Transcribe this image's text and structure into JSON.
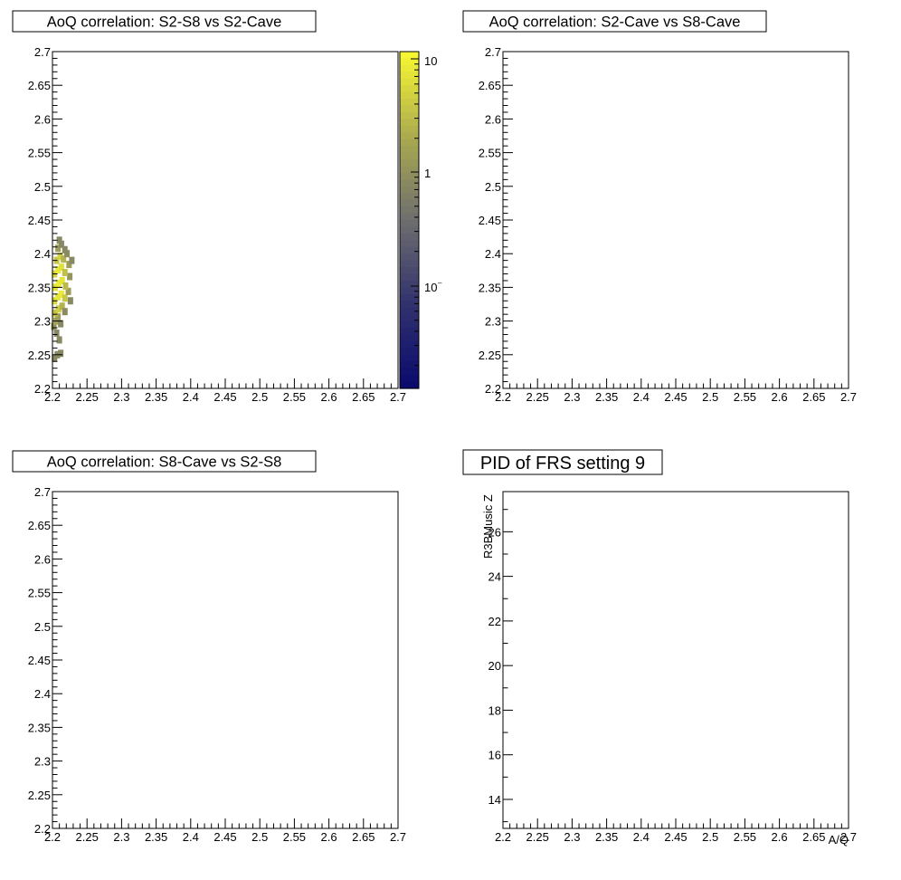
{
  "chart_data": [
    {
      "type": "heatmap",
      "title": "AoQ correlation: S2-S8 vs S2-Cave",
      "xlabel": "",
      "ylabel": "",
      "xlim": [
        2.2,
        2.7
      ],
      "ylim": [
        2.2,
        2.7
      ],
      "xticks": [
        "2.2",
        "2.25",
        "2.3",
        "2.35",
        "2.4",
        "2.45",
        "2.5",
        "2.55",
        "2.6",
        "2.65",
        "2.7"
      ],
      "yticks": [
        "2.2",
        "2.25",
        "2.3",
        "2.35",
        "2.4",
        "2.45",
        "2.5",
        "2.55",
        "2.6",
        "2.65",
        "2.7"
      ],
      "colorbar": {
        "scale": "log",
        "ticks": [
          "10",
          "1",
          "10"
        ],
        "range": [
          0.02,
          12
        ]
      },
      "colors": {
        "low": "#0b0b6e",
        "mid": "#6e6e6e",
        "high": "#f5f532"
      },
      "cells": [
        [
          2.203,
          2.245,
          0.4
        ],
        [
          2.207,
          2.25,
          0.6
        ],
        [
          2.212,
          2.252,
          0.5
        ],
        [
          2.202,
          2.292,
          1.2
        ],
        [
          2.205,
          2.3,
          1.8
        ],
        [
          2.208,
          2.306,
          1.5
        ],
        [
          2.212,
          2.296,
          0.9
        ],
        [
          2.204,
          2.312,
          3.5
        ],
        [
          2.209,
          2.318,
          5.0
        ],
        [
          2.214,
          2.322,
          2.5
        ],
        [
          2.218,
          2.314,
          1.0
        ],
        [
          2.203,
          2.33,
          6.0
        ],
        [
          2.208,
          2.336,
          8.5
        ],
        [
          2.213,
          2.34,
          9.5
        ],
        [
          2.218,
          2.334,
          4.0
        ],
        [
          2.223,
          2.344,
          1.5
        ],
        [
          2.204,
          2.35,
          7.0
        ],
        [
          2.209,
          2.356,
          10.0
        ],
        [
          2.214,
          2.36,
          8.0
        ],
        [
          2.219,
          2.352,
          3.0
        ],
        [
          2.225,
          2.366,
          1.2
        ],
        [
          2.203,
          2.37,
          5.5
        ],
        [
          2.208,
          2.376,
          9.0
        ],
        [
          2.213,
          2.38,
          7.5
        ],
        [
          2.218,
          2.372,
          3.5
        ],
        [
          2.224,
          2.384,
          1.5
        ],
        [
          2.206,
          2.39,
          4.0
        ],
        [
          2.211,
          2.396,
          5.5
        ],
        [
          2.216,
          2.392,
          2.5
        ],
        [
          2.221,
          2.4,
          1.0
        ],
        [
          2.208,
          2.408,
          1.5
        ],
        [
          2.213,
          2.414,
          0.8
        ],
        [
          2.218,
          2.406,
          0.6
        ],
        [
          2.21,
          2.42,
          0.3
        ],
        [
          2.226,
          2.33,
          0.4
        ],
        [
          2.228,
          2.39,
          0.3
        ],
        [
          2.206,
          2.282,
          0.5
        ],
        [
          2.21,
          2.272,
          0.3
        ]
      ]
    },
    {
      "type": "heatmap",
      "title": "AoQ correlation: S2-Cave vs S8-Cave",
      "xlabel": "",
      "ylabel": "",
      "xlim": [
        2.2,
        2.7
      ],
      "ylim": [
        2.2,
        2.7
      ],
      "xticks": [
        "2.2",
        "2.25",
        "2.3",
        "2.35",
        "2.4",
        "2.45",
        "2.5",
        "2.55",
        "2.6",
        "2.65",
        "2.7"
      ],
      "yticks": [
        "2.2",
        "2.25",
        "2.3",
        "2.35",
        "2.4",
        "2.45",
        "2.5",
        "2.55",
        "2.6",
        "2.65",
        "2.7"
      ],
      "cells": []
    },
    {
      "type": "heatmap",
      "title": "AoQ correlation: S8-Cave vs S2-S8",
      "xlabel": "",
      "ylabel": "",
      "xlim": [
        2.2,
        2.7
      ],
      "ylim": [
        2.2,
        2.7
      ],
      "xticks": [
        "2.2",
        "2.25",
        "2.3",
        "2.35",
        "2.4",
        "2.45",
        "2.5",
        "2.55",
        "2.6",
        "2.65",
        "2.7"
      ],
      "yticks": [
        "2.2",
        "2.25",
        "2.3",
        "2.35",
        "2.4",
        "2.45",
        "2.5",
        "2.55",
        "2.6",
        "2.65",
        "2.7"
      ],
      "cells": []
    },
    {
      "type": "heatmap",
      "title": "PID of FRS setting 9",
      "xlabel": "A/Q",
      "ylabel": "R3BMusic Z",
      "xlim": [
        2.2,
        2.7
      ],
      "ylim": [
        12.7,
        27.8
      ],
      "xticks": [
        "2.2",
        "2.25",
        "2.3",
        "2.35",
        "2.4",
        "2.45",
        "2.5",
        "2.55",
        "2.6",
        "2.65",
        "2.7"
      ],
      "yticks": [
        "14",
        "16",
        "18",
        "20",
        "22",
        "24",
        "26"
      ],
      "cells": []
    }
  ]
}
